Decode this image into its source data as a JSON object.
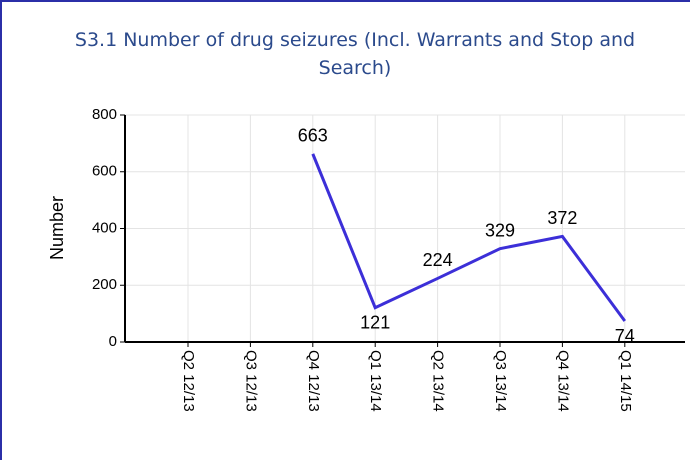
{
  "chart_data": {
    "type": "line",
    "title": "S3.1 Number of drug seizures (Incl. Warrants and Stop and Search)",
    "y_label": "Number",
    "categories": [
      "Q2 12/13",
      "Q3 12/13",
      "Q4 12/13",
      "Q1 13/14",
      "Q2 13/14",
      "Q3 13/14",
      "Q4 13/14",
      "Q1 14/15"
    ],
    "values": [
      null,
      null,
      663,
      121,
      224,
      329,
      372,
      74
    ],
    "color": "#3c2fd8",
    "ylim": [
      0,
      800
    ],
    "yticks": [
      0,
      200,
      400,
      600,
      800
    ],
    "grid": true
  }
}
